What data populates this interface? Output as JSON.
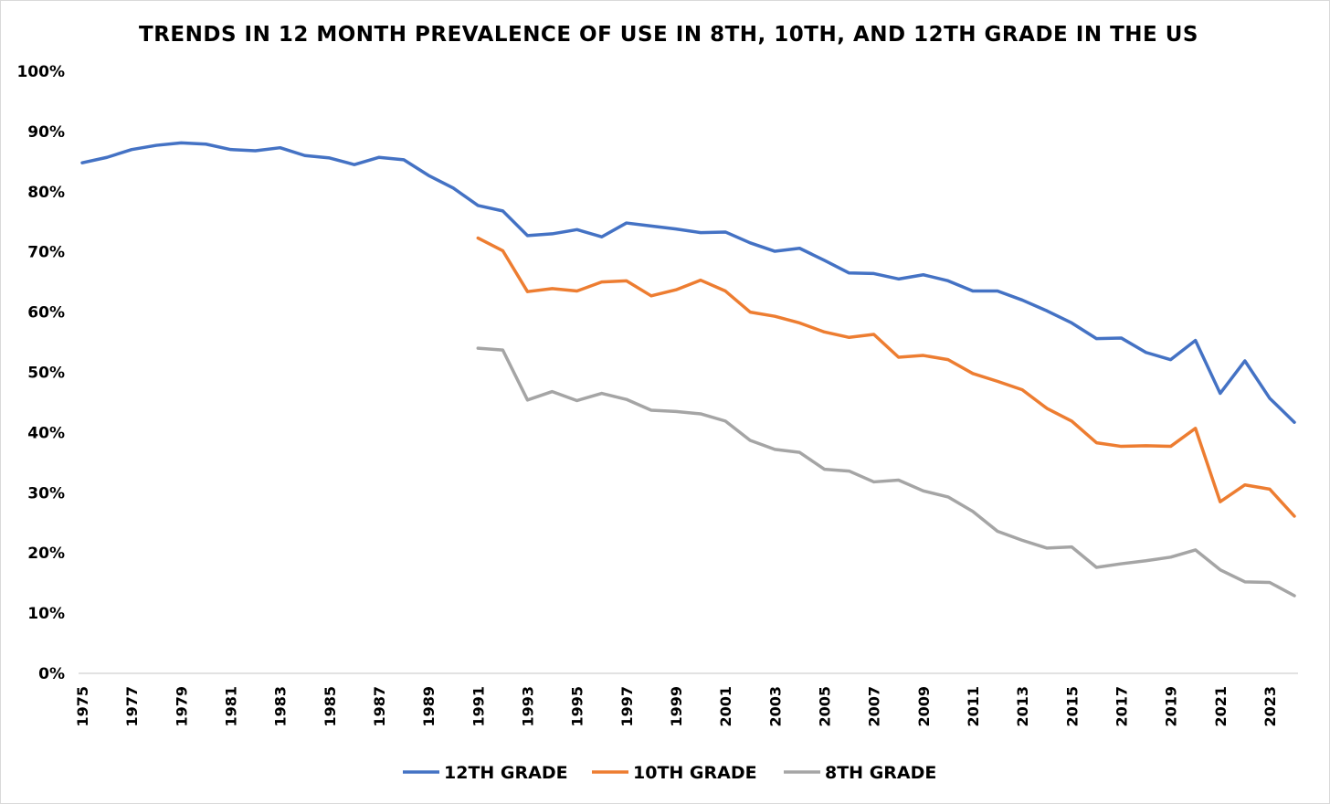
{
  "chart_data": {
    "type": "line",
    "title": "TRENDS IN 12 MONTH PREVALENCE OF USE IN 8TH, 10TH, AND 12TH GRADE IN THE US",
    "xlabel": "",
    "ylabel": "",
    "ylim": [
      0,
      100
    ],
    "y_ticks": [
      "0%",
      "10%",
      "20%",
      "30%",
      "40%",
      "50%",
      "60%",
      "70%",
      "80%",
      "90%",
      "100%"
    ],
    "x_tick_labels": [
      "1975",
      "1977",
      "1979",
      "1981",
      "1983",
      "1985",
      "1987",
      "1989",
      "1991",
      "1993",
      "1995",
      "1997",
      "1999",
      "2001",
      "2003",
      "2005",
      "2007",
      "2009",
      "2011",
      "2013",
      "2015",
      "2017",
      "2019",
      "2021",
      "2023"
    ],
    "x": [
      1975,
      1976,
      1977,
      1978,
      1979,
      1980,
      1981,
      1982,
      1983,
      1984,
      1985,
      1986,
      1987,
      1988,
      1989,
      1990,
      1991,
      1992,
      1993,
      1994,
      1995,
      1996,
      1997,
      1998,
      1999,
      2000,
      2001,
      2002,
      2003,
      2004,
      2005,
      2006,
      2007,
      2008,
      2009,
      2010,
      2011,
      2012,
      2013,
      2014,
      2015,
      2016,
      2017,
      2018,
      2019,
      2020,
      2021,
      2022,
      2023,
      2024
    ],
    "grid": false,
    "legend_position": "bottom",
    "series": [
      {
        "name": "12TH GRADE",
        "color": "#4472C4",
        "values": [
          84.8,
          85.7,
          87.0,
          87.7,
          88.1,
          87.9,
          87.0,
          86.8,
          87.3,
          86.0,
          85.6,
          84.5,
          85.7,
          85.3,
          82.7,
          80.6,
          77.7,
          76.8,
          72.7,
          73.0,
          73.7,
          72.5,
          74.8,
          74.3,
          73.8,
          73.2,
          73.3,
          71.5,
          70.1,
          70.6,
          68.6,
          66.5,
          66.4,
          65.5,
          66.2,
          65.2,
          63.5,
          63.5,
          62.0,
          60.2,
          58.2,
          55.6,
          55.7,
          53.3,
          52.1,
          55.3,
          46.5,
          51.9,
          45.7,
          41.7
        ]
      },
      {
        "name": "10TH GRADE",
        "color": "#ED7D31",
        "values": [
          null,
          null,
          null,
          null,
          null,
          null,
          null,
          null,
          null,
          null,
          null,
          null,
          null,
          null,
          null,
          null,
          72.3,
          70.2,
          63.4,
          63.9,
          63.5,
          65.0,
          65.2,
          62.7,
          63.7,
          65.3,
          63.5,
          60.0,
          59.3,
          58.2,
          56.7,
          55.8,
          56.3,
          52.5,
          52.8,
          52.1,
          49.8,
          48.5,
          47.1,
          44.0,
          41.9,
          38.3,
          37.7,
          37.8,
          37.7,
          40.7,
          28.5,
          31.3,
          30.6,
          26.1
        ]
      },
      {
        "name": "8TH GRADE",
        "color": "#A5A5A5",
        "values": [
          null,
          null,
          null,
          null,
          null,
          null,
          null,
          null,
          null,
          null,
          null,
          null,
          null,
          null,
          null,
          null,
          54.0,
          53.7,
          45.4,
          46.8,
          45.3,
          46.5,
          45.5,
          43.7,
          43.5,
          43.1,
          41.9,
          38.7,
          37.2,
          36.7,
          33.9,
          33.6,
          31.8,
          32.1,
          30.3,
          29.3,
          26.9,
          23.6,
          22.1,
          20.8,
          21.0,
          17.6,
          18.2,
          18.7,
          19.3,
          20.5,
          17.2,
          15.2,
          15.1,
          12.9
        ]
      }
    ]
  }
}
